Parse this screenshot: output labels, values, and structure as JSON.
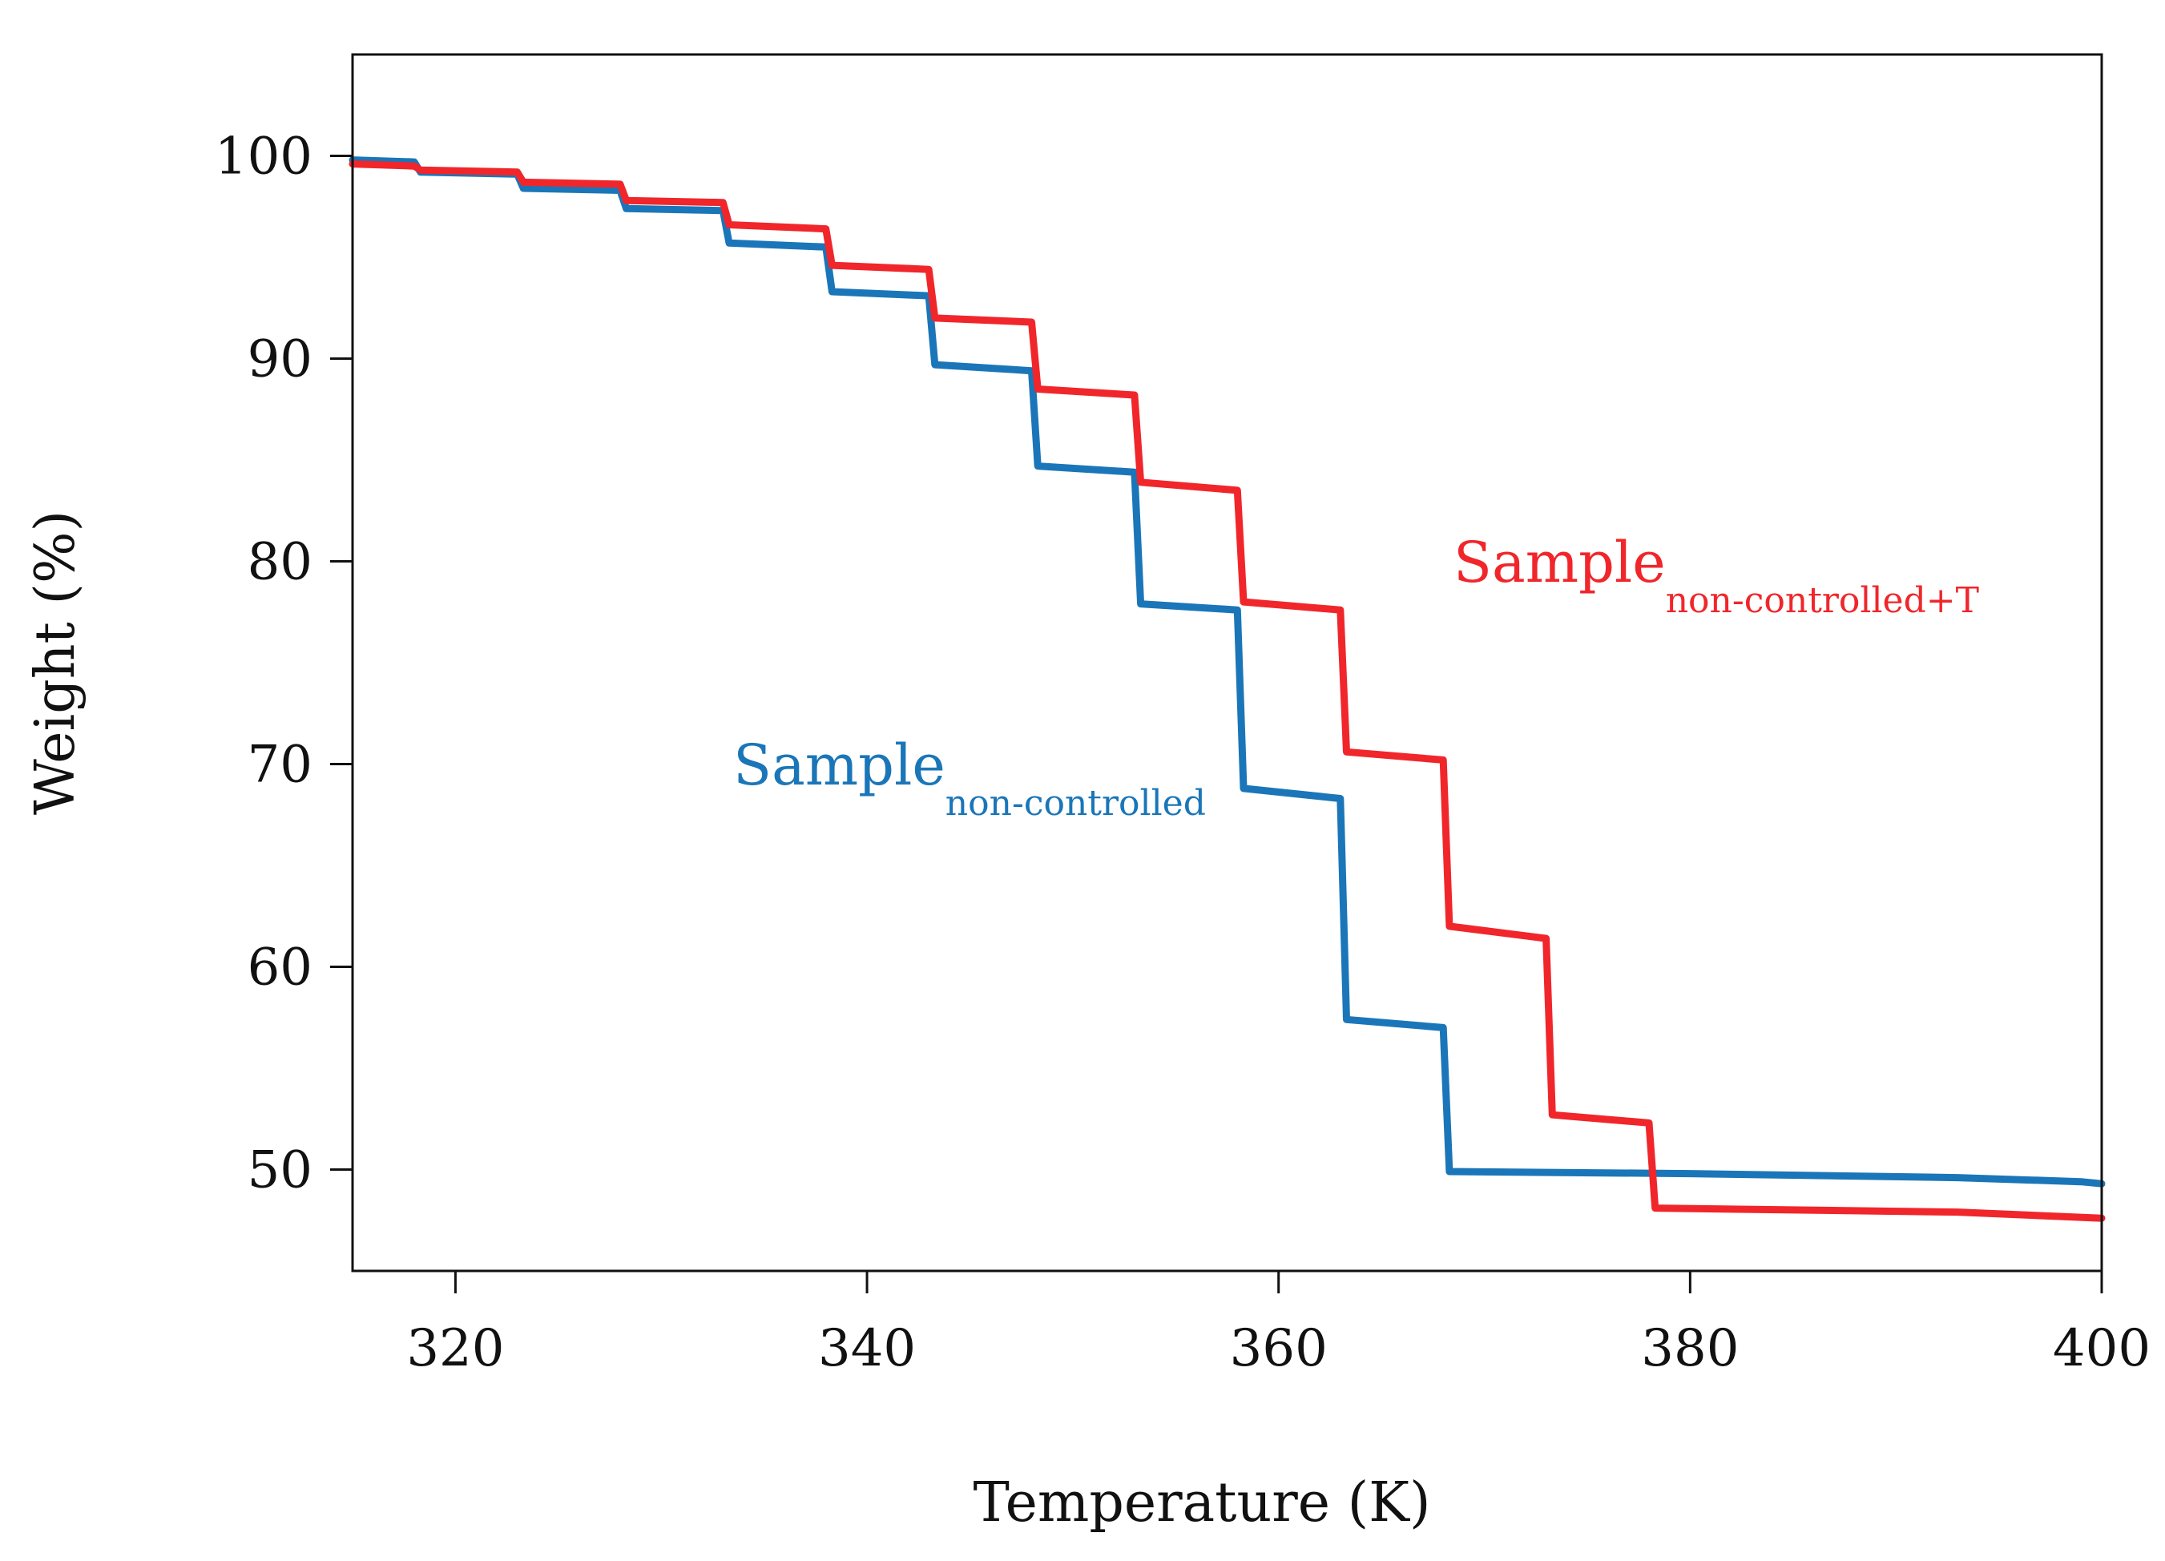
{
  "chart_data": {
    "type": "line",
    "title": "",
    "xlabel": "Temperature (K)",
    "ylabel": "Weight (%)",
    "xlim": [
      315,
      400
    ],
    "ylim": [
      45,
      105
    ],
    "xticks": [
      320,
      340,
      360,
      380,
      400
    ],
    "yticks": [
      50,
      60,
      70,
      80,
      90,
      100
    ],
    "grid": false,
    "series": [
      {
        "name": "Sample non-controlled",
        "label_main": "Sample",
        "label_sub": "non-controlled",
        "color": "#1a76b8",
        "label_at": {
          "x": 333.5,
          "y": 69
        },
        "x": [
          315,
          318,
          318.3,
          323,
          323.3,
          328,
          328.3,
          333,
          333.3,
          338,
          338.3,
          343,
          343.3,
          348,
          348.3,
          353,
          353.3,
          358,
          358.3,
          363,
          363.3,
          368,
          368.3,
          380,
          393,
          399,
          400
        ],
        "y": [
          99.8,
          99.7,
          99.2,
          99.1,
          98.4,
          98.3,
          97.4,
          97.3,
          95.7,
          95.5,
          93.3,
          93.1,
          89.7,
          89.4,
          84.7,
          84.4,
          77.9,
          77.6,
          68.8,
          68.3,
          57.4,
          57.0,
          49.9,
          49.8,
          49.6,
          49.4,
          49.3
        ]
      },
      {
        "name": "Sample non-controlled+T",
        "label_main": "Sample",
        "label_sub": "non-controlled+T",
        "color": "#f0262b",
        "label_at": {
          "x": 368.5,
          "y": 79
        },
        "x": [
          315,
          318,
          318.3,
          323,
          323.3,
          328,
          328.3,
          333,
          333.3,
          338,
          338.3,
          343,
          343.3,
          348,
          348.3,
          353,
          353.3,
          358,
          358.3,
          363,
          363.3,
          368,
          368.3,
          373,
          373.3,
          378,
          378.3,
          393,
          400
        ],
        "y": [
          99.6,
          99.5,
          99.3,
          99.2,
          98.7,
          98.6,
          97.8,
          97.7,
          96.6,
          96.4,
          94.6,
          94.4,
          92.0,
          91.8,
          88.5,
          88.2,
          83.9,
          83.5,
          78.0,
          77.6,
          70.6,
          70.2,
          62.0,
          61.4,
          52.7,
          52.3,
          48.1,
          47.9,
          47.6
        ]
      }
    ]
  }
}
